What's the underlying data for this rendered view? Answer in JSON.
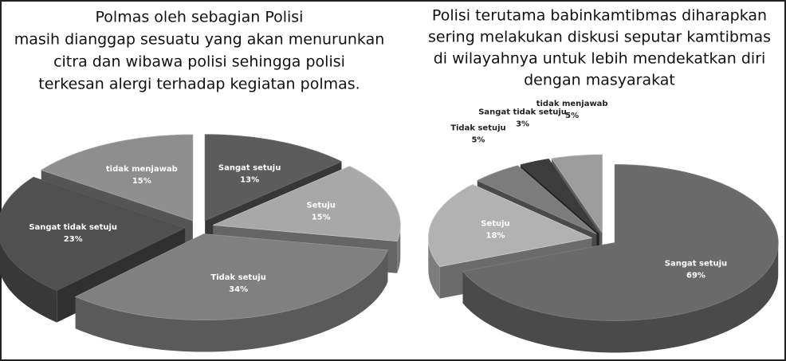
{
  "chart_data": [
    {
      "type": "pie3d",
      "title": [
        "Polmas oleh sebagian Polisi",
        "masih dianggap sesuatu yang akan menurunkan",
        "citra dan wibawa polisi sehingga polisi",
        "terkesan alergi terhadap kegiatan polmas."
      ],
      "categories": [
        "Sangat setuju",
        "Setuju",
        "Tidak setuju",
        "Sangat tidak setuju",
        "tidak menjawab"
      ],
      "values": [
        13,
        15,
        34,
        23,
        15
      ],
      "value_labels": [
        "13%",
        "15%",
        "34%",
        "23%",
        "15%"
      ],
      "colors": [
        "#5c5c5c",
        "#a8a8a8",
        "#808080",
        "#505050",
        "#8e8e8e"
      ]
    },
    {
      "type": "pie3d",
      "title": [
        "Polisi terutama babinkamtibmas diharapkan",
        "sering melakukan diskusi seputar kamtibmas",
        "di wilayahnya untuk lebih mendekatkan diri",
        "dengan masyarakat"
      ],
      "categories": [
        "Sangat setuju",
        "Setuju",
        "Tidak setuju",
        "Sangat tidak setuju",
        "tidak menjawab"
      ],
      "values": [
        69,
        18,
        5,
        3,
        5
      ],
      "value_labels": [
        "69%",
        "18%",
        "5%",
        "3%",
        "5%"
      ],
      "colors": [
        "#6a6a6a",
        "#b2b2b2",
        "#7c7c7c",
        "#3c3c3c",
        "#9c9c9c"
      ]
    }
  ]
}
